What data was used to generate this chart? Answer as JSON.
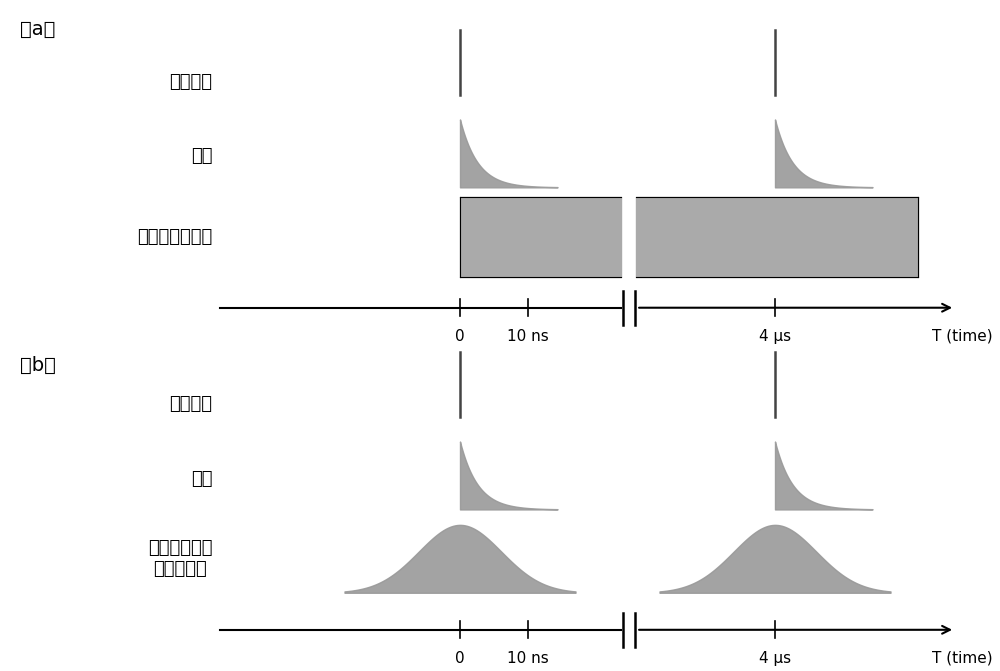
{
  "panel_a_label": "（a）",
  "panel_b_label": "（b）",
  "label_laser_a": "飞秒激光",
  "label_fluor_a": "荧光",
  "label_sted_a": "受激发射减损光",
  "label_laser_b": "飞秒激光",
  "label_fluor_b": "荧光",
  "label_sted_b": "调制后的受激\n发射减损光",
  "axis_label_0": "0",
  "axis_label_10ns": "10 ns",
  "axis_label_4us": "4 μs",
  "axis_label_T": "T (time)",
  "fill_color": "#999999",
  "rect_color": "#aaaaaa",
  "text_color": "#000000",
  "spike_color": "#444444",
  "font_size_label": 13,
  "font_size_axis": 11,
  "font_size_panel": 14
}
